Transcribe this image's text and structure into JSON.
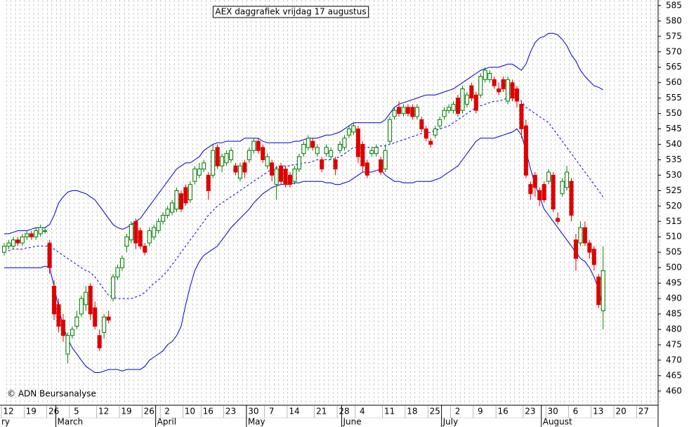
{
  "chart_data": {
    "type": "candlestick",
    "title": "AEX daggrafiek vrijdag 17 augustus",
    "credit": "© ADN Beursanalyse",
    "categories": [
      "12",
      null,
      null,
      null,
      null,
      "19",
      null,
      null,
      null,
      null,
      "26",
      null,
      null,
      null,
      null,
      "5",
      null,
      null,
      null,
      null,
      null,
      "12",
      null,
      null,
      null,
      null,
      "19",
      null,
      null,
      null,
      null,
      "26",
      null,
      null,
      null,
      "2",
      null,
      null,
      null,
      null,
      "10",
      null,
      null,
      null,
      "16",
      null,
      null,
      null,
      null,
      "23",
      null,
      null,
      null,
      null,
      "30",
      null,
      null,
      null,
      "7",
      null,
      null,
      null,
      null,
      "14",
      null,
      null,
      null,
      null,
      null,
      "21",
      null,
      null,
      null,
      null,
      "28",
      null,
      null,
      null,
      "4",
      null,
      null,
      null,
      null,
      null,
      "11",
      null,
      null,
      null,
      null,
      "18",
      null,
      null,
      null,
      null,
      "25",
      null,
      null,
      null,
      null,
      "2",
      null,
      null,
      null,
      null,
      "9",
      null,
      null,
      null,
      null,
      "16",
      null,
      null,
      null,
      null,
      null,
      "23",
      null,
      null,
      null,
      null,
      "30",
      null,
      null,
      null,
      null,
      "6",
      null,
      null,
      null,
      null,
      "13",
      null,
      null,
      null,
      null,
      "20",
      null,
      null,
      null,
      null,
      "27",
      null,
      null,
      null,
      null
    ],
    "months": [
      "ry",
      null,
      null,
      null,
      null,
      null,
      null,
      null,
      null,
      null,
      null,
      null,
      "March",
      null,
      null,
      null,
      null,
      null,
      null,
      null,
      null,
      null,
      null,
      null,
      null,
      null,
      null,
      null,
      null,
      null,
      null,
      null,
      null,
      null,
      "April",
      null,
      null,
      null,
      null,
      null,
      null,
      null,
      null,
      null,
      null,
      null,
      null,
      null,
      null,
      null,
      null,
      null,
      null,
      null,
      "May",
      null,
      null,
      null,
      null,
      null,
      null,
      null,
      null,
      null,
      null,
      null,
      null,
      null,
      null,
      null,
      null,
      null,
      null,
      null,
      null,
      "June",
      null,
      null,
      null,
      null,
      null,
      null,
      null,
      null,
      null,
      null,
      null,
      null,
      null,
      null,
      null,
      null,
      null,
      null,
      null,
      null,
      null,
      "July",
      null,
      null,
      null,
      null,
      null,
      null,
      null,
      null,
      null,
      null,
      null,
      null,
      null,
      null,
      null,
      null,
      null,
      null,
      null,
      null,
      null,
      "August",
      null,
      null,
      null,
      null,
      null,
      null,
      null,
      null,
      null,
      null,
      null,
      null,
      null,
      null,
      null,
      null,
      null,
      null,
      null,
      null,
      null,
      null,
      null,
      null
    ],
    "open": [
      505,
      507,
      507,
      509,
      508,
      510,
      511,
      510,
      511,
      512,
      508,
      494,
      488,
      483,
      472,
      478,
      481,
      485,
      488,
      494,
      487,
      478,
      479,
      484,
      490,
      497,
      500,
      507,
      509,
      515,
      512,
      507,
      508,
      510,
      512,
      515,
      517,
      518,
      519,
      524,
      526,
      522,
      528,
      530,
      532,
      530,
      530,
      539,
      533,
      534,
      535,
      533,
      529,
      534,
      535,
      538,
      541,
      539,
      533,
      534,
      527,
      533,
      532,
      530,
      528,
      532,
      537,
      539,
      541,
      537,
      535,
      537,
      536,
      535,
      538,
      539,
      543,
      544,
      545,
      540,
      534,
      537,
      537,
      535,
      532,
      541,
      549,
      552,
      550,
      552,
      552,
      549,
      548,
      545,
      541,
      543,
      546,
      549,
      551,
      551,
      555,
      551,
      553,
      559,
      556,
      556,
      561,
      561,
      561,
      558,
      561,
      554,
      560,
      558,
      553,
      546,
      527,
      530,
      525,
      527,
      528,
      530,
      516,
      524,
      526,
      528,
      509,
      508,
      513,
      508,
      506,
      497,
      486,
      null,
      null,
      null,
      null,
      null,
      null,
      null,
      null,
      null,
      null,
      null,
      null
    ],
    "high": [
      508,
      509,
      510,
      510,
      511,
      512,
      512,
      513,
      514,
      513,
      509,
      496,
      490,
      485,
      479,
      481,
      486,
      491,
      494,
      495,
      489,
      480,
      485,
      486,
      498,
      501,
      504,
      511,
      515,
      516,
      513,
      508,
      513,
      514,
      516,
      518,
      520,
      522,
      526,
      525,
      527,
      528,
      533,
      534,
      535,
      531,
      540,
      540,
      537,
      538,
      539,
      534,
      534,
      535,
      539,
      542,
      542,
      540,
      537,
      535,
      533,
      534,
      533,
      531,
      533,
      537,
      541,
      543,
      542,
      540,
      536,
      540,
      539,
      536,
      541,
      543,
      546,
      547,
      546,
      541,
      535,
      539,
      540,
      536,
      540,
      549,
      552,
      554,
      553,
      553,
      553,
      553,
      549,
      546,
      542,
      546,
      549,
      552,
      553,
      554,
      556,
      559,
      557,
      560,
      557,
      563,
      565,
      564,
      562,
      560,
      562,
      562,
      561,
      559,
      554,
      548,
      528,
      531,
      526,
      528,
      532,
      531,
      518,
      529,
      533,
      529,
      511,
      515,
      515,
      509,
      507,
      498,
      507,
      null,
      null,
      null,
      null,
      null,
      null,
      null,
      null,
      null,
      null,
      null,
      null
    ],
    "low": [
      504,
      506,
      506,
      507,
      507,
      509,
      509,
      509,
      510,
      511,
      498,
      483,
      479,
      476,
      469,
      477,
      480,
      484,
      486,
      483,
      480,
      473,
      477,
      482,
      489,
      496,
      499,
      505,
      508,
      506,
      506,
      504,
      507,
      509,
      511,
      514,
      516,
      517,
      518,
      518,
      520,
      521,
      527,
      529,
      531,
      522,
      529,
      532,
      531,
      533,
      534,
      530,
      528,
      529,
      534,
      537,
      537,
      534,
      532,
      528,
      522,
      527,
      526,
      526,
      527,
      531,
      536,
      538,
      538,
      536,
      531,
      536,
      535,
      530,
      537,
      538,
      542,
      543,
      534,
      531,
      529,
      536,
      536,
      530,
      531,
      540,
      548,
      549,
      549,
      549,
      548,
      548,
      544,
      541,
      539,
      542,
      545,
      548,
      550,
      550,
      549,
      550,
      552,
      554,
      550,
      555,
      560,
      560,
      558,
      556,
      557,
      553,
      554,
      552,
      542,
      529,
      522,
      523,
      520,
      521,
      527,
      518,
      514,
      523,
      525,
      515,
      499,
      507,
      507,
      503,
      499,
      487,
      480,
      null,
      null,
      null,
      null,
      null,
      null,
      null,
      null,
      null,
      null,
      null,
      null
    ],
    "close": [
      507,
      508,
      509,
      508,
      510,
      511,
      510,
      512,
      513,
      512,
      500,
      485,
      481,
      478,
      478,
      480,
      484,
      490,
      492,
      485,
      481,
      474,
      484,
      483,
      497,
      500,
      503,
      510,
      514,
      508,
      507,
      505,
      512,
      513,
      515,
      517,
      519,
      521,
      525,
      519,
      521,
      527,
      532,
      532,
      534,
      525,
      538,
      533,
      536,
      537,
      538,
      531,
      533,
      531,
      538,
      541,
      538,
      535,
      536,
      530,
      532,
      528,
      527,
      527,
      532,
      536,
      540,
      542,
      539,
      539,
      532,
      539,
      538,
      532,
      540,
      542,
      545,
      546,
      536,
      533,
      530,
      538,
      539,
      531,
      538,
      548,
      551,
      550,
      552,
      550,
      549,
      552,
      545,
      542,
      540,
      545,
      548,
      551,
      552,
      553,
      550,
      558,
      556,
      555,
      551,
      562,
      564,
      563,
      559,
      557,
      558,
      561,
      555,
      554,
      545,
      530,
      524,
      526,
      522,
      522,
      531,
      519,
      515,
      528,
      531,
      517,
      503,
      513,
      508,
      505,
      501,
      488,
      499,
      null,
      null,
      null,
      null,
      null,
      null,
      null,
      null,
      null,
      null,
      null,
      null
    ],
    "upper_band": [
      511,
      511,
      511.5,
      512,
      512,
      512,
      512.5,
      513,
      513,
      513,
      514,
      517,
      521,
      523,
      524.5,
      525,
      525,
      524.5,
      524,
      523,
      522,
      520,
      518,
      516,
      514,
      513,
      512.5,
      513,
      514,
      515,
      516,
      518,
      520,
      522,
      524,
      526,
      528,
      530,
      532,
      533,
      534,
      534,
      535,
      536,
      538,
      539,
      540,
      540.5,
      540.5,
      541,
      541,
      541,
      541,
      542,
      542,
      542,
      542,
      541,
      540.5,
      540.5,
      540.5,
      540.5,
      540.5,
      540.5,
      541,
      541,
      541.5,
      542,
      542,
      542,
      542.5,
      543,
      543,
      543.5,
      544,
      545,
      546,
      547,
      547,
      547,
      547,
      547,
      547,
      547,
      548,
      550,
      552,
      553,
      553.5,
      554,
      554.5,
      555,
      555.5,
      556,
      556,
      556,
      556.5,
      557,
      557.5,
      558,
      559,
      560,
      561,
      562,
      563,
      564,
      564.5,
      565,
      565,
      565,
      565.5,
      566,
      566,
      565,
      564,
      566,
      570,
      573,
      574.5,
      575,
      576,
      576,
      575.5,
      574,
      572,
      569,
      567,
      564,
      562,
      560.5,
      559,
      558.5,
      557.7,
      null,
      null,
      null,
      null,
      null,
      null,
      null,
      null,
      null,
      null,
      null,
      null
    ],
    "middle_band": [
      505,
      505.5,
      506,
      506,
      506,
      506.5,
      506.5,
      507,
      507,
      507,
      507,
      506,
      505,
      504,
      503,
      502,
      501,
      500,
      499,
      498.5,
      497,
      495,
      493,
      491,
      490.5,
      490,
      490,
      490,
      490,
      490.5,
      491,
      492,
      493.5,
      495,
      496,
      497.5,
      499,
      501,
      503,
      505,
      507,
      509,
      511,
      513,
      515,
      517,
      518.5,
      520,
      521,
      522,
      523,
      524,
      525,
      526,
      527,
      528,
      529,
      530,
      531,
      532,
      532.5,
      533,
      533,
      533,
      533.5,
      533.5,
      534,
      534,
      534.5,
      535,
      535,
      535,
      535,
      535.5,
      536,
      537,
      538,
      539,
      539,
      539,
      539,
      539,
      539,
      539.5,
      539.5,
      540,
      540.5,
      541,
      541.5,
      542,
      542.5,
      543,
      543.5,
      543.5,
      544,
      544.5,
      545,
      545.5,
      546,
      547,
      548,
      549,
      550,
      551,
      552,
      552.5,
      553,
      553.5,
      554,
      554,
      554.5,
      555,
      555,
      555,
      554,
      552,
      551,
      550,
      549,
      548,
      547,
      545,
      543,
      541,
      539,
      537,
      535,
      533,
      531,
      529,
      527,
      525,
      523,
      null,
      null,
      null,
      null,
      null,
      null,
      null,
      null,
      null,
      null,
      null,
      null
    ],
    "lower_band": [
      500,
      500,
      500,
      500,
      500,
      500,
      500,
      500,
      500,
      500.5,
      500,
      494,
      487,
      481,
      477,
      474,
      472,
      470,
      468,
      467,
      466,
      466,
      466.5,
      467,
      467,
      467,
      466.5,
      467,
      467,
      467,
      467,
      468,
      470,
      471,
      472,
      473,
      475,
      476,
      478,
      481,
      488,
      494,
      499,
      502,
      504,
      505,
      506,
      507,
      509,
      511,
      513,
      514.5,
      516,
      517.5,
      519,
      521,
      522.5,
      524,
      525,
      526,
      526.5,
      527,
      527,
      527,
      527.5,
      527.5,
      528,
      528,
      528,
      528,
      528,
      527.5,
      527.5,
      527,
      527,
      527.5,
      528,
      529,
      530,
      531,
      531,
      531,
      531.5,
      532,
      530,
      529,
      528,
      528,
      527.5,
      527.5,
      527.5,
      528,
      528,
      528,
      528,
      528.5,
      529,
      530,
      531,
      532,
      533,
      535,
      537,
      539,
      541,
      542,
      542,
      542,
      542,
      542.5,
      543,
      543.5,
      544,
      545,
      543,
      538,
      532,
      527,
      523,
      519,
      517,
      515,
      513,
      511,
      509,
      507,
      505,
      503,
      502,
      500,
      497,
      493,
      487,
      null,
      null,
      null,
      null,
      null,
      null,
      null,
      null,
      null,
      null,
      null,
      null
    ],
    "up_color": "#008000",
    "down_color": "#e00000",
    "band_color": "#0000cc",
    "ylim": [
      455.4,
      586.8
    ],
    "yticks": [
      460,
      465,
      470,
      475,
      480,
      485,
      490,
      495,
      500,
      505,
      510,
      515,
      520,
      525,
      530,
      535,
      540,
      545,
      550,
      555,
      560,
      565,
      570,
      575,
      580,
      585
    ],
    "grid": true
  }
}
